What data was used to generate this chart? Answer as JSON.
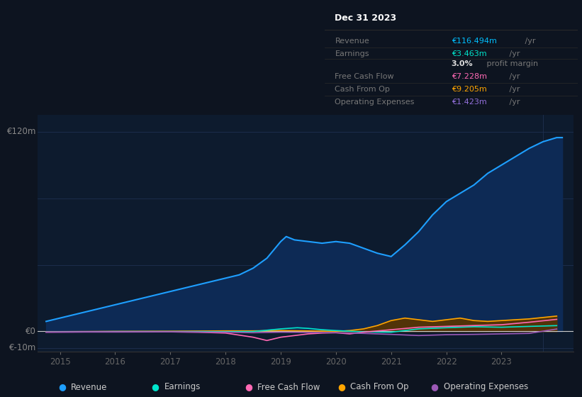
{
  "bg_color": "#0d1420",
  "plot_bg_color": "#0d1b2e",
  "grid_color": "#1e3050",
  "title_box_bg": "#0a0a0a",
  "title_box_border": "#333333",
  "ylim": [
    -12,
    130
  ],
  "ytick_positions": [
    -10,
    0,
    40,
    80,
    120
  ],
  "ytick_labels_map": {
    "€-10m": -10,
    "€0": 0,
    "€120m": 120
  },
  "xlim_start": 2014.6,
  "xlim_end": 2024.3,
  "xticks": [
    2015,
    2016,
    2017,
    2018,
    2019,
    2020,
    2021,
    2022,
    2023
  ],
  "title_box": {
    "date": "Dec 31 2023",
    "rows": [
      {
        "label": "Revenue",
        "value": "€116.494m",
        "unit": " /yr",
        "value_color": "#00bfff",
        "divider_before": true
      },
      {
        "label": "Earnings",
        "value": "€3.463m",
        "unit": " /yr",
        "value_color": "#00e5cc",
        "divider_before": true
      },
      {
        "label": "",
        "value": "3.0%",
        "unit": " profit margin",
        "value_color": "#dddddd",
        "bold_value": true,
        "divider_before": false
      },
      {
        "label": "Free Cash Flow",
        "value": "€7.228m",
        "unit": " /yr",
        "value_color": "#ff69b4",
        "divider_before": true
      },
      {
        "label": "Cash From Op",
        "value": "€9.205m",
        "unit": " /yr",
        "value_color": "#ffa500",
        "divider_before": true
      },
      {
        "label": "Operating Expenses",
        "value": "€1.423m",
        "unit": " /yr",
        "value_color": "#9370db",
        "divider_before": true
      }
    ]
  },
  "series": {
    "revenue": {
      "color": "#1e9fff",
      "fill_color": "#0d2a55",
      "label": "Revenue",
      "x": [
        2014.75,
        2015.0,
        2015.5,
        2016.0,
        2016.5,
        2017.0,
        2017.25,
        2017.5,
        2017.75,
        2018.0,
        2018.25,
        2018.5,
        2018.75,
        2019.0,
        2019.1,
        2019.25,
        2019.5,
        2019.75,
        2020.0,
        2020.25,
        2020.5,
        2020.75,
        2021.0,
        2021.25,
        2021.5,
        2021.75,
        2022.0,
        2022.25,
        2022.5,
        2022.75,
        2023.0,
        2023.25,
        2023.5,
        2023.75,
        2024.0,
        2024.1
      ],
      "y": [
        6,
        8,
        12,
        16,
        20,
        24,
        26,
        28,
        30,
        32,
        34,
        38,
        44,
        54,
        57,
        55,
        54,
        53,
        54,
        53,
        50,
        47,
        45,
        52,
        60,
        70,
        78,
        83,
        88,
        95,
        100,
        105,
        110,
        114,
        116.5,
        116.5
      ]
    },
    "earnings": {
      "color": "#00e5cc",
      "label": "Earnings",
      "x": [
        2014.75,
        2015.5,
        2016.0,
        2016.5,
        2017.0,
        2017.5,
        2018.0,
        2018.5,
        2019.0,
        2019.3,
        2019.5,
        2019.75,
        2020.0,
        2020.5,
        2021.0,
        2021.5,
        2022.0,
        2022.5,
        2023.0,
        2023.5,
        2024.0
      ],
      "y": [
        -0.3,
        -0.2,
        -0.1,
        -0.1,
        -0.1,
        -0.1,
        -0.2,
        -0.1,
        1.5,
        2.2,
        1.8,
        1.0,
        0.5,
        -0.3,
        -0.5,
        1.5,
        2.2,
        2.8,
        2.5,
        3.0,
        3.463
      ]
    },
    "free_cash_flow": {
      "color": "#ff69b4",
      "label": "Free Cash Flow",
      "x": [
        2014.75,
        2015.5,
        2016.0,
        2017.0,
        2017.5,
        2018.0,
        2018.5,
        2018.75,
        2019.0,
        2019.25,
        2019.5,
        2019.75,
        2020.0,
        2020.25,
        2020.5,
        2021.0,
        2021.5,
        2022.0,
        2022.5,
        2023.0,
        2023.5,
        2024.0
      ],
      "y": [
        -0.4,
        -0.3,
        -0.3,
        -0.3,
        -0.5,
        -1.0,
        -3.5,
        -5.5,
        -3.5,
        -2.5,
        -1.5,
        -1.0,
        -0.8,
        -1.5,
        -0.5,
        1.0,
        2.5,
        3.0,
        3.5,
        4.0,
        5.5,
        7.228
      ]
    },
    "cash_from_op": {
      "color": "#ffa500",
      "fill_color": "#5a3500",
      "label": "Cash From Op",
      "x": [
        2014.75,
        2015.5,
        2016.0,
        2017.0,
        2018.0,
        2018.5,
        2019.0,
        2019.5,
        2020.0,
        2020.25,
        2020.5,
        2020.75,
        2021.0,
        2021.25,
        2021.5,
        2021.75,
        2022.0,
        2022.25,
        2022.5,
        2022.75,
        2023.0,
        2023.5,
        2024.0
      ],
      "y": [
        -0.2,
        -0.1,
        0.0,
        0.1,
        0.3,
        0.3,
        0.5,
        0.3,
        0.0,
        0.5,
        1.5,
        3.5,
        6.5,
        8.0,
        7.0,
        6.0,
        7.0,
        8.0,
        6.5,
        6.0,
        6.5,
        7.5,
        9.205
      ]
    },
    "operating_expenses": {
      "color": "#9b59b6",
      "label": "Operating Expenses",
      "x": [
        2014.75,
        2015.5,
        2016.0,
        2017.0,
        2018.0,
        2018.5,
        2019.0,
        2019.5,
        2020.0,
        2020.5,
        2021.0,
        2021.5,
        2022.0,
        2022.5,
        2023.0,
        2023.5,
        2024.0
      ],
      "y": [
        -0.5,
        -0.4,
        -0.4,
        -0.3,
        -0.5,
        -0.8,
        -0.5,
        -0.6,
        -0.8,
        -1.2,
        -1.8,
        -2.5,
        -2.0,
        -1.8,
        -1.5,
        -1.2,
        1.423
      ]
    }
  },
  "legend": [
    {
      "label": "Revenue",
      "color": "#1e9fff"
    },
    {
      "label": "Earnings",
      "color": "#00e5cc"
    },
    {
      "label": "Free Cash Flow",
      "color": "#ff69b4"
    },
    {
      "label": "Cash From Op",
      "color": "#ffa500"
    },
    {
      "label": "Operating Expenses",
      "color": "#9b59b6"
    }
  ]
}
